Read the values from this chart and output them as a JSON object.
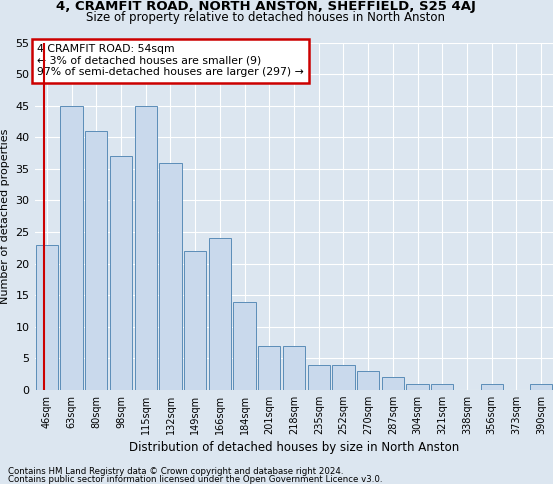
{
  "title1": "4, CRAMFIT ROAD, NORTH ANSTON, SHEFFIELD, S25 4AJ",
  "title2": "Size of property relative to detached houses in North Anston",
  "xlabel": "Distribution of detached houses by size in North Anston",
  "ylabel": "Number of detached properties",
  "categories": [
    "46sqm",
    "63sqm",
    "80sqm",
    "98sqm",
    "115sqm",
    "132sqm",
    "149sqm",
    "166sqm",
    "184sqm",
    "201sqm",
    "218sqm",
    "235sqm",
    "252sqm",
    "270sqm",
    "287sqm",
    "304sqm",
    "321sqm",
    "338sqm",
    "356sqm",
    "373sqm",
    "390sqm"
  ],
  "values": [
    23,
    45,
    41,
    37,
    45,
    36,
    22,
    24,
    14,
    7,
    7,
    4,
    4,
    3,
    2,
    1,
    1,
    0,
    1,
    0,
    1
  ],
  "bar_color": "#c9d9ec",
  "bar_edge_color": "#5b8db8",
  "highlight_line_color": "#cc0000",
  "annotation_text": "4 CRAMFIT ROAD: 54sqm\n← 3% of detached houses are smaller (9)\n97% of semi-detached houses are larger (297) →",
  "annotation_box_color": "#ffffff",
  "annotation_box_edge_color": "#cc0000",
  "ylim": [
    0,
    55
  ],
  "yticks": [
    0,
    5,
    10,
    15,
    20,
    25,
    30,
    35,
    40,
    45,
    50,
    55
  ],
  "footer_line1": "Contains HM Land Registry data © Crown copyright and database right 2024.",
  "footer_line2": "Contains public sector information licensed under the Open Government Licence v3.0.",
  "bg_color": "#dce6f0",
  "plot_bg_color": "#dce6f0",
  "grid_color": "#ffffff"
}
